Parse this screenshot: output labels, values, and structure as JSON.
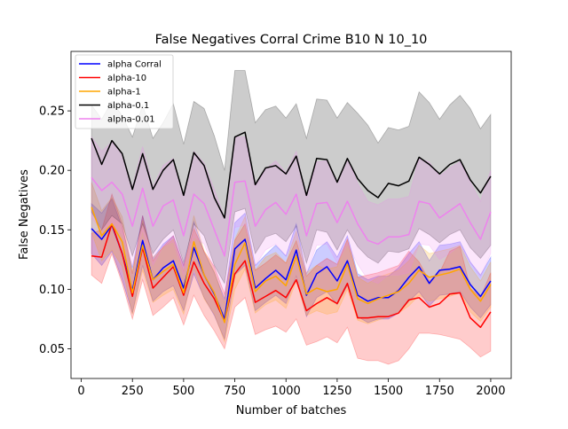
{
  "chart_data": {
    "type": "line",
    "title": "False Negatives Corral Crime B10 N 10_10",
    "xlabel": "Number of batches",
    "ylabel": "False Negatives",
    "xlim": [
      -50,
      2100
    ],
    "ylim": [
      0.025,
      0.3
    ],
    "xticks": [
      0,
      250,
      500,
      750,
      1000,
      1250,
      1500,
      1750,
      2000
    ],
    "yticks": [
      0.05,
      0.1,
      0.15,
      0.2,
      0.25
    ],
    "ytick_labels": [
      "0.05",
      "0.10",
      "0.15",
      "0.20",
      "0.25"
    ],
    "grid": false,
    "legend_position": "top-left",
    "x": [
      50,
      100,
      150,
      200,
      250,
      300,
      350,
      400,
      450,
      500,
      550,
      600,
      650,
      700,
      750,
      800,
      850,
      900,
      950,
      1000,
      1050,
      1100,
      1150,
      1200,
      1250,
      1300,
      1350,
      1400,
      1450,
      1500,
      1550,
      1600,
      1650,
      1700,
      1750,
      1800,
      1850,
      1900,
      1950,
      2000
    ],
    "series": [
      {
        "name": "alpha Corral",
        "color": "#0000ff",
        "values": [
          0.151,
          0.142,
          0.154,
          0.13,
          0.099,
          0.141,
          0.108,
          0.118,
          0.124,
          0.101,
          0.135,
          0.112,
          0.096,
          0.075,
          0.134,
          0.142,
          0.101,
          0.109,
          0.116,
          0.108,
          0.133,
          0.095,
          0.113,
          0.119,
          0.107,
          0.124,
          0.095,
          0.09,
          0.093,
          0.093,
          0.099,
          0.11,
          0.119,
          0.105,
          0.116,
          0.117,
          0.119,
          0.104,
          0.094,
          0.107
        ],
        "lower": [
          0.13,
          0.12,
          0.132,
          0.108,
          0.08,
          0.12,
          0.09,
          0.098,
          0.103,
          0.082,
          0.113,
          0.093,
          0.078,
          0.058,
          0.112,
          0.12,
          0.082,
          0.089,
          0.095,
          0.088,
          0.111,
          0.077,
          0.093,
          0.098,
          0.087,
          0.103,
          0.077,
          0.072,
          0.075,
          0.075,
          0.08,
          0.09,
          0.098,
          0.086,
          0.095,
          0.096,
          0.098,
          0.085,
          0.076,
          0.087
        ],
        "upper": [
          0.172,
          0.164,
          0.176,
          0.152,
          0.118,
          0.162,
          0.126,
          0.138,
          0.145,
          0.12,
          0.157,
          0.131,
          0.114,
          0.092,
          0.156,
          0.164,
          0.12,
          0.129,
          0.137,
          0.128,
          0.155,
          0.113,
          0.133,
          0.14,
          0.127,
          0.145,
          0.113,
          0.108,
          0.111,
          0.111,
          0.118,
          0.13,
          0.14,
          0.124,
          0.137,
          0.138,
          0.14,
          0.123,
          0.112,
          0.127
        ]
      },
      {
        "name": "alpha-10",
        "color": "#ff0000",
        "values": [
          0.128,
          0.127,
          0.155,
          0.13,
          0.094,
          0.135,
          0.101,
          0.11,
          0.119,
          0.095,
          0.123,
          0.105,
          0.092,
          0.073,
          0.113,
          0.124,
          0.089,
          0.094,
          0.099,
          0.093,
          0.108,
          0.082,
          0.088,
          0.093,
          0.088,
          0.105,
          0.076,
          0.076,
          0.077,
          0.077,
          0.08,
          0.091,
          0.093,
          0.085,
          0.088,
          0.096,
          0.097,
          0.076,
          0.068,
          0.081
        ],
        "lower": [
          0.112,
          0.105,
          0.13,
          0.105,
          0.075,
          0.108,
          0.078,
          0.085,
          0.093,
          0.07,
          0.095,
          0.078,
          0.065,
          0.05,
          0.085,
          0.093,
          0.062,
          0.066,
          0.069,
          0.064,
          0.075,
          0.053,
          0.056,
          0.06,
          0.055,
          0.068,
          0.042,
          0.04,
          0.04,
          0.037,
          0.04,
          0.05,
          0.063,
          0.063,
          0.062,
          0.06,
          0.058,
          0.051,
          0.043,
          0.048
        ],
        "upper": [
          0.147,
          0.15,
          0.18,
          0.155,
          0.113,
          0.162,
          0.124,
          0.136,
          0.145,
          0.12,
          0.151,
          0.132,
          0.119,
          0.096,
          0.141,
          0.155,
          0.116,
          0.122,
          0.129,
          0.122,
          0.141,
          0.111,
          0.12,
          0.126,
          0.121,
          0.142,
          0.11,
          0.112,
          0.114,
          0.117,
          0.12,
          0.132,
          0.123,
          0.107,
          0.114,
          0.132,
          0.136,
          0.101,
          0.093,
          0.114
        ]
      },
      {
        "name": "alpha-1",
        "color": "#ffa500",
        "values": [
          0.169,
          0.145,
          0.155,
          0.14,
          0.097,
          0.137,
          0.108,
          0.115,
          0.121,
          0.097,
          0.14,
          0.112,
          0.097,
          0.072,
          0.121,
          0.139,
          0.098,
          0.107,
          0.111,
          0.103,
          0.128,
          0.096,
          0.101,
          0.098,
          0.1,
          0.121,
          0.092,
          0.088,
          0.092,
          0.095,
          0.098,
          0.105,
          0.116,
          0.11,
          0.112,
          0.114,
          0.117,
          0.1,
          0.09,
          0.104
        ],
        "lower": [
          0.148,
          0.124,
          0.133,
          0.119,
          0.079,
          0.116,
          0.089,
          0.095,
          0.1,
          0.079,
          0.118,
          0.092,
          0.079,
          0.056,
          0.1,
          0.117,
          0.08,
          0.087,
          0.091,
          0.084,
          0.107,
          0.078,
          0.082,
          0.079,
          0.081,
          0.1,
          0.074,
          0.071,
          0.074,
          0.077,
          0.08,
          0.086,
          0.095,
          0.09,
          0.092,
          0.094,
          0.097,
          0.081,
          0.073,
          0.085
        ],
        "upper": [
          0.19,
          0.166,
          0.177,
          0.161,
          0.115,
          0.158,
          0.127,
          0.135,
          0.142,
          0.115,
          0.162,
          0.132,
          0.115,
          0.088,
          0.142,
          0.161,
          0.116,
          0.127,
          0.131,
          0.122,
          0.149,
          0.114,
          0.12,
          0.117,
          0.119,
          0.142,
          0.11,
          0.105,
          0.11,
          0.113,
          0.116,
          0.124,
          0.137,
          0.13,
          0.132,
          0.134,
          0.137,
          0.119,
          0.107,
          0.123
        ]
      },
      {
        "name": "alpha-0.1",
        "color": "#000000",
        "values": [
          0.227,
          0.205,
          0.225,
          0.214,
          0.184,
          0.214,
          0.184,
          0.2,
          0.209,
          0.179,
          0.215,
          0.204,
          0.177,
          0.16,
          0.228,
          0.232,
          0.188,
          0.202,
          0.204,
          0.197,
          0.212,
          0.179,
          0.21,
          0.209,
          0.19,
          0.21,
          0.193,
          0.183,
          0.177,
          0.189,
          0.187,
          0.191,
          0.211,
          0.205,
          0.197,
          0.205,
          0.209,
          0.192,
          0.181,
          0.195
        ],
        "lower": [
          0.165,
          0.15,
          0.162,
          0.155,
          0.128,
          0.155,
          0.13,
          0.142,
          0.15,
          0.122,
          0.155,
          0.145,
          0.12,
          0.105,
          0.165,
          0.168,
          0.13,
          0.144,
          0.147,
          0.14,
          0.153,
          0.122,
          0.15,
          0.148,
          0.133,
          0.15,
          0.136,
          0.127,
          0.122,
          0.132,
          0.131,
          0.134,
          0.151,
          0.146,
          0.139,
          0.146,
          0.15,
          0.135,
          0.126,
          0.137
        ],
        "upper": [
          0.255,
          0.243,
          0.258,
          0.246,
          0.228,
          0.255,
          0.227,
          0.24,
          0.256,
          0.222,
          0.258,
          0.252,
          0.229,
          0.2,
          0.284,
          0.284,
          0.24,
          0.251,
          0.254,
          0.244,
          0.256,
          0.227,
          0.26,
          0.259,
          0.244,
          0.257,
          0.248,
          0.238,
          0.223,
          0.236,
          0.234,
          0.237,
          0.266,
          0.257,
          0.243,
          0.255,
          0.263,
          0.252,
          0.235,
          0.247
        ]
      },
      {
        "name": "alpha-0.01",
        "color": "#ee82ee",
        "values": [
          0.194,
          0.183,
          0.19,
          0.18,
          0.153,
          0.185,
          0.153,
          0.17,
          0.175,
          0.145,
          0.18,
          0.172,
          0.15,
          0.128,
          0.19,
          0.191,
          0.153,
          0.167,
          0.173,
          0.163,
          0.18,
          0.145,
          0.172,
          0.173,
          0.156,
          0.174,
          0.155,
          0.141,
          0.138,
          0.144,
          0.144,
          0.146,
          0.174,
          0.172,
          0.16,
          0.166,
          0.172,
          0.156,
          0.142,
          0.165
        ],
        "lower": [
          0.16,
          0.15,
          0.156,
          0.146,
          0.12,
          0.15,
          0.12,
          0.136,
          0.14,
          0.112,
          0.144,
          0.138,
          0.116,
          0.096,
          0.152,
          0.154,
          0.12,
          0.133,
          0.138,
          0.128,
          0.144,
          0.113,
          0.137,
          0.138,
          0.122,
          0.138,
          0.121,
          0.108,
          0.105,
          0.112,
          0.112,
          0.114,
          0.138,
          0.137,
          0.125,
          0.13,
          0.137,
          0.122,
          0.11,
          0.13
        ],
        "upper": [
          0.228,
          0.216,
          0.224,
          0.214,
          0.186,
          0.22,
          0.186,
          0.204,
          0.21,
          0.178,
          0.216,
          0.206,
          0.184,
          0.16,
          0.228,
          0.228,
          0.186,
          0.201,
          0.208,
          0.198,
          0.216,
          0.177,
          0.207,
          0.208,
          0.19,
          0.21,
          0.189,
          0.174,
          0.171,
          0.176,
          0.176,
          0.178,
          0.21,
          0.207,
          0.195,
          0.202,
          0.207,
          0.19,
          0.174,
          0.2
        ]
      }
    ]
  }
}
